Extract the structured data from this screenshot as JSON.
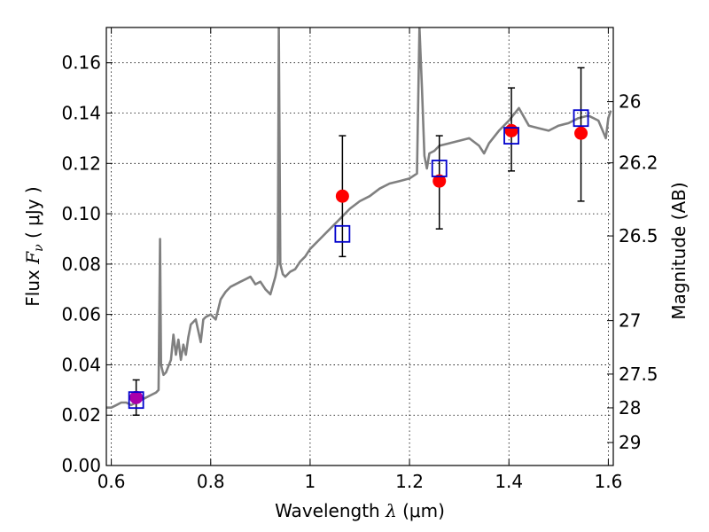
{
  "chart_data": {
    "type": "scatter",
    "xlabel": {
      "prefix": "Wavelength  ",
      "symbol": "λ",
      "unit": " (μm)"
    },
    "ylabel": {
      "prefix": "Flux  ",
      "symbol": "F",
      "subscript": "ν",
      "unit": "  ( μJy )"
    },
    "y2label": "Magnitude (AB)",
    "xlim": [
      0.59,
      1.61
    ],
    "ylim": [
      0.0,
      0.174
    ],
    "grid": true,
    "grid_style": "dotted",
    "x_ticks": [
      {
        "value": 0.6,
        "label": "0.6"
      },
      {
        "value": 0.8,
        "label": "0.8"
      },
      {
        "value": 1.0,
        "label": "1"
      },
      {
        "value": 1.2,
        "label": "1.2"
      },
      {
        "value": 1.4,
        "label": "1.4"
      },
      {
        "value": 1.6,
        "label": "1.6"
      }
    ],
    "y_ticks": [
      {
        "value": 0.0,
        "label": "0.00"
      },
      {
        "value": 0.02,
        "label": "0.02"
      },
      {
        "value": 0.04,
        "label": "0.04"
      },
      {
        "value": 0.06,
        "label": "0.06"
      },
      {
        "value": 0.08,
        "label": "0.08"
      },
      {
        "value": 0.1,
        "label": "0.10"
      },
      {
        "value": 0.12,
        "label": "0.12"
      },
      {
        "value": 0.14,
        "label": "0.14"
      },
      {
        "value": 0.16,
        "label": "0.16"
      }
    ],
    "magnitude_ticks": [
      {
        "label": "26",
        "mag": 26.0
      },
      {
        "label": "26.2",
        "mag": 26.2
      },
      {
        "label": "26.5",
        "mag": 26.5
      },
      {
        "label": "27",
        "mag": 27.0
      },
      {
        "label": "27.5",
        "mag": 27.5
      },
      {
        "label": "28",
        "mag": 28.0
      },
      {
        "label": "29",
        "mag": 29.0
      }
    ],
    "colors": {
      "spectrum": "#808080",
      "observed": "#ff0000",
      "model": "#0000cc",
      "optical": "#aa00aa",
      "errorbar": "#000000"
    },
    "spectrum": {
      "x": [
        0.59,
        0.6,
        0.61,
        0.62,
        0.63,
        0.64,
        0.65,
        0.66,
        0.67,
        0.68,
        0.69,
        0.695,
        0.698,
        0.7,
        0.705,
        0.71,
        0.72,
        0.725,
        0.73,
        0.735,
        0.74,
        0.745,
        0.75,
        0.755,
        0.76,
        0.77,
        0.78,
        0.785,
        0.79,
        0.8,
        0.81,
        0.82,
        0.83,
        0.84,
        0.85,
        0.86,
        0.87,
        0.88,
        0.89,
        0.9,
        0.91,
        0.92,
        0.93,
        0.935,
        0.937,
        0.94,
        0.945,
        0.95,
        0.96,
        0.97,
        0.98,
        0.99,
        1.0,
        1.02,
        1.04,
        1.06,
        1.08,
        1.1,
        1.12,
        1.14,
        1.16,
        1.18,
        1.2,
        1.215,
        1.22,
        1.225,
        1.23,
        1.235,
        1.24,
        1.25,
        1.26,
        1.28,
        1.3,
        1.32,
        1.34,
        1.35,
        1.36,
        1.38,
        1.4,
        1.42,
        1.44,
        1.46,
        1.48,
        1.5,
        1.52,
        1.54,
        1.56,
        1.58,
        1.595,
        1.6,
        1.605
      ],
      "y": [
        0.023,
        0.023,
        0.024,
        0.025,
        0.025,
        0.024,
        0.025,
        0.026,
        0.027,
        0.028,
        0.029,
        0.03,
        0.09,
        0.04,
        0.036,
        0.037,
        0.042,
        0.052,
        0.044,
        0.05,
        0.042,
        0.048,
        0.044,
        0.051,
        0.056,
        0.058,
        0.049,
        0.058,
        0.059,
        0.06,
        0.058,
        0.066,
        0.069,
        0.071,
        0.072,
        0.073,
        0.074,
        0.075,
        0.072,
        0.073,
        0.07,
        0.068,
        0.075,
        0.08,
        0.174,
        0.08,
        0.076,
        0.075,
        0.077,
        0.078,
        0.081,
        0.083,
        0.086,
        0.09,
        0.094,
        0.098,
        0.102,
        0.105,
        0.107,
        0.11,
        0.112,
        0.113,
        0.114,
        0.116,
        0.174,
        0.15,
        0.123,
        0.118,
        0.124,
        0.125,
        0.127,
        0.128,
        0.129,
        0.13,
        0.127,
        0.124,
        0.128,
        0.133,
        0.137,
        0.142,
        0.135,
        0.134,
        0.133,
        0.135,
        0.136,
        0.138,
        0.139,
        0.137,
        0.13,
        0.138,
        0.141
      ]
    },
    "observed": [
      {
        "x": 0.65,
        "y": 0.027,
        "err_low": 0.02,
        "err_high": 0.034,
        "color": "optical"
      },
      {
        "x": 1.065,
        "y": 0.107,
        "err_low": 0.083,
        "err_high": 0.131,
        "color": "observed"
      },
      {
        "x": 1.26,
        "y": 0.113,
        "err_low": 0.094,
        "err_high": 0.131,
        "color": "observed"
      },
      {
        "x": 1.405,
        "y": 0.133,
        "err_low": 0.117,
        "err_high": 0.15,
        "color": "observed"
      },
      {
        "x": 1.545,
        "y": 0.132,
        "err_low": 0.105,
        "err_high": 0.158,
        "color": "observed"
      }
    ],
    "model": [
      {
        "x": 0.65,
        "y": 0.026
      },
      {
        "x": 1.065,
        "y": 0.092
      },
      {
        "x": 1.26,
        "y": 0.118
      },
      {
        "x": 1.405,
        "y": 0.131
      },
      {
        "x": 1.545,
        "y": 0.138
      }
    ]
  }
}
